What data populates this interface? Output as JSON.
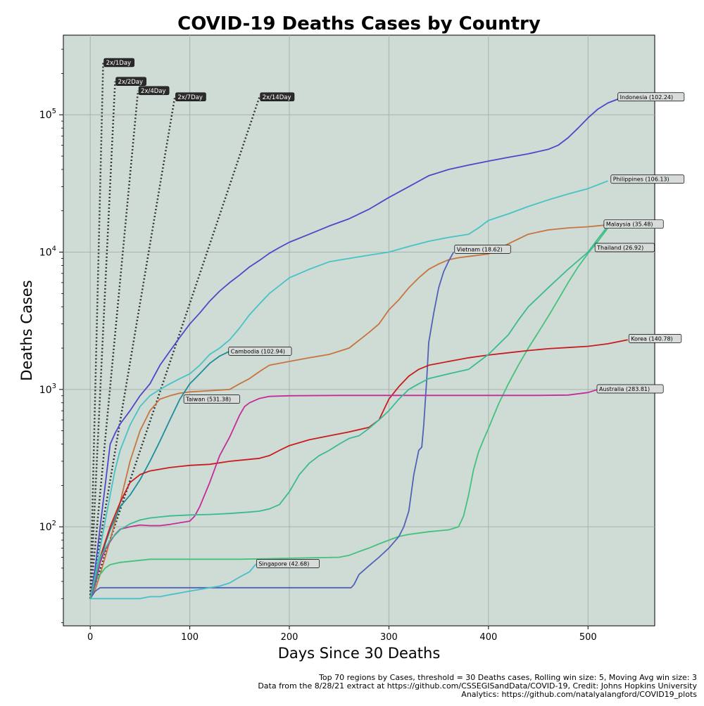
{
  "chart_data": {
    "type": "line",
    "title": "COVID-19  Deaths Cases by Country",
    "xlabel": "Days Since 30 Deaths",
    "ylabel": "Deaths Cases",
    "xlim": [
      -27,
      567
    ],
    "ylim": [
      19,
      380000
    ],
    "yscale": "log",
    "grid": true,
    "x_ticks": [
      0,
      100,
      200,
      300,
      400,
      500
    ],
    "y_ticks": [
      100,
      1000,
      10000,
      100000
    ],
    "y_tick_labels": [
      {
        "base": "10",
        "exp": "2"
      },
      {
        "base": "10",
        "exp": "3"
      },
      {
        "base": "10",
        "exp": "4"
      },
      {
        "base": "10",
        "exp": "5"
      }
    ],
    "background_color": "#cfdbd5",
    "footer": [
      "Top 70 regions by Cases, threshold = 30 Deaths cases, Rolling win size: 5, Moving Avg win size: 3",
      "Data from the 8/28/21 extract at https://github.com/CSSEGISandData/COVID-19, Credit: Johns Hopkins University",
      "Analytics: https://github.com/natalyalangford/COVID19_plots"
    ],
    "doubling_lines": [
      {
        "label": "2x/1Day",
        "end": [
          13,
          240000
        ]
      },
      {
        "label": "2x/2Day",
        "end": [
          25,
          175000
        ]
      },
      {
        "label": "2x/4Day",
        "end": [
          48,
          150000
        ]
      },
      {
        "label": "2x/7Day",
        "end": [
          85,
          135000
        ]
      },
      {
        "label": "2x/14Day",
        "end": [
          170,
          135000
        ]
      }
    ],
    "series": [
      {
        "name": "Indonesia (102.24)",
        "color": "#4f46c9",
        "x": [
          0,
          5,
          10,
          15,
          20,
          25,
          30,
          40,
          50,
          60,
          70,
          80,
          90,
          100,
          110,
          120,
          130,
          140,
          150,
          160,
          170,
          180,
          190,
          200,
          220,
          240,
          260,
          280,
          300,
          320,
          340,
          360,
          380,
          400,
          420,
          440,
          460,
          470,
          480,
          490,
          500,
          510,
          520,
          530
        ],
        "y": [
          30,
          50,
          100,
          200,
          400,
          480,
          560,
          700,
          900,
          1100,
          1500,
          1900,
          2400,
          3000,
          3600,
          4400,
          5200,
          6000,
          6800,
          7800,
          8700,
          9800,
          10800,
          11800,
          13500,
          15500,
          17500,
          20500,
          25000,
          30000,
          36000,
          40000,
          43000,
          46000,
          49000,
          52000,
          56000,
          60000,
          68000,
          80000,
          95000,
          110000,
          122000,
          130000
        ],
        "label_pos": [
          530,
          135000
        ]
      },
      {
        "name": "Philippines (106.13)",
        "color": "#45c3c6",
        "x": [
          0,
          5,
          10,
          15,
          20,
          25,
          30,
          40,
          50,
          60,
          70,
          80,
          90,
          100,
          110,
          120,
          130,
          140,
          150,
          160,
          170,
          180,
          190,
          200,
          220,
          240,
          260,
          280,
          300,
          320,
          340,
          360,
          380,
          390,
          400,
          420,
          440,
          460,
          480,
          500,
          520
        ],
        "y": [
          30,
          45,
          70,
          110,
          170,
          260,
          360,
          550,
          750,
          900,
          1000,
          1100,
          1200,
          1300,
          1500,
          1800,
          2000,
          2300,
          2800,
          3500,
          4200,
          5000,
          5700,
          6500,
          7500,
          8500,
          9000,
          9500,
          10000,
          11000,
          12000,
          12800,
          13500,
          15000,
          17000,
          19000,
          21500,
          24000,
          26500,
          29000,
          33000
        ],
        "label_pos": [
          523,
          34000
        ]
      },
      {
        "name": "Malaysia (35.48)",
        "color": "#c8743e",
        "x": [
          0,
          5,
          10,
          15,
          20,
          30,
          40,
          50,
          60,
          70,
          80,
          90,
          100,
          120,
          140,
          150,
          160,
          170,
          180,
          200,
          220,
          240,
          260,
          280,
          290,
          300,
          310,
          320,
          330,
          340,
          350,
          360,
          370,
          380,
          400,
          420,
          440,
          460,
          480,
          500,
          520
        ],
        "y": [
          30,
          35,
          45,
          60,
          80,
          150,
          300,
          500,
          700,
          850,
          900,
          940,
          960,
          980,
          1000,
          1100,
          1200,
          1350,
          1500,
          1600,
          1700,
          1800,
          2000,
          2600,
          3000,
          3800,
          4500,
          5500,
          6500,
          7500,
          8200,
          8800,
          9100,
          9300,
          9700,
          11500,
          13500,
          14500,
          15000,
          15300,
          15800
        ],
        "label_pos": [
          516,
          16000
        ]
      },
      {
        "name": "Thailand (26.92)",
        "color": "#43c27d",
        "x": [
          0,
          5,
          10,
          15,
          20,
          30,
          40,
          50,
          60,
          100,
          150,
          200,
          250,
          260,
          270,
          280,
          290,
          300,
          310,
          320,
          340,
          360,
          370,
          375,
          380,
          385,
          390,
          395,
          400,
          410,
          420,
          430,
          440,
          450,
          460,
          470,
          480,
          490,
          500,
          510,
          520
        ],
        "y": [
          30,
          40,
          45,
          50,
          53,
          55,
          56,
          57,
          58,
          58,
          58,
          59,
          60,
          62,
          66,
          70,
          75,
          80,
          85,
          88,
          92,
          95,
          100,
          120,
          170,
          260,
          350,
          430,
          520,
          780,
          1100,
          1500,
          2000,
          2600,
          3400,
          4500,
          6000,
          7800,
          9800,
          12000,
          15000
        ],
        "label_pos": [
          507,
          10800
        ]
      },
      {
        "name": "Vietnam (18.62)",
        "color": "#5162b6",
        "x": [
          0,
          5,
          10,
          50,
          100,
          150,
          200,
          250,
          262,
          265,
          270,
          280,
          290,
          300,
          310,
          315,
          320,
          325,
          330,
          333,
          335,
          338,
          340,
          345,
          350,
          355,
          360,
          365
        ],
        "y": [
          30,
          34,
          36,
          36,
          36,
          36,
          36,
          36,
          36,
          38,
          45,
          52,
          60,
          70,
          85,
          100,
          130,
          240,
          360,
          380,
          550,
          1200,
          2200,
          3600,
          5500,
          7200,
          8600,
          10000
        ],
        "label_pos": [
          366,
          10500
        ]
      },
      {
        "name": "Cambodia (102.94)",
        "color": "#1a8e9c",
        "x": [
          0,
          5,
          10,
          15,
          20,
          25,
          30,
          40,
          50,
          60,
          70,
          80,
          90,
          100,
          110,
          120,
          130,
          140
        ],
        "y": [
          30,
          38,
          55,
          75,
          95,
          115,
          140,
          170,
          220,
          300,
          420,
          600,
          850,
          1100,
          1300,
          1550,
          1750,
          1900
        ],
        "label_pos": [
          139,
          1900
        ]
      },
      {
        "name": "Korea (140.78)",
        "color": "#c81d1d",
        "x": [
          0,
          10,
          20,
          30,
          40,
          50,
          60,
          80,
          100,
          120,
          140,
          160,
          170,
          180,
          190,
          200,
          220,
          240,
          260,
          280,
          290,
          300,
          310,
          320,
          330,
          340,
          360,
          380,
          400,
          420,
          440,
          460,
          480,
          500,
          520,
          540
        ],
        "y": [
          30,
          60,
          100,
          150,
          210,
          240,
          255,
          270,
          280,
          285,
          300,
          310,
          315,
          330,
          360,
          390,
          430,
          460,
          490,
          530,
          600,
          850,
          1050,
          1250,
          1400,
          1500,
          1600,
          1700,
          1780,
          1850,
          1920,
          1980,
          2020,
          2060,
          2150,
          2300
        ],
        "label_pos": [
          541,
          2350
        ]
      },
      {
        "name": "Taiwan (531.38)",
        "color": "#c42d99",
        "x": [
          0,
          5,
          10,
          15,
          20,
          25,
          30,
          40,
          50,
          60,
          70,
          80,
          90,
          100,
          105,
          110,
          120,
          130,
          140,
          150,
          155,
          160,
          170,
          180,
          200,
          250,
          300,
          350,
          400,
          450,
          480,
          500,
          510
        ],
        "y": [
          30,
          40,
          55,
          68,
          78,
          88,
          96,
          100,
          103,
          102,
          102,
          104,
          107,
          110,
          120,
          140,
          210,
          330,
          450,
          650,
          750,
          800,
          860,
          890,
          900,
          905,
          905,
          905,
          905,
          905,
          910,
          950,
          1000
        ],
        "label_pos": [
          94,
          850
        ]
      },
      {
        "name": "Australia (283.81)",
        "color": "#c42d99",
        "x": [
          510,
          520
        ],
        "y": [
          1000,
          1020
        ],
        "label_pos": [
          509,
          1010
        ]
      },
      {
        "name": "Singapore (42.68)",
        "color": "#48bfc9",
        "x": [
          0,
          20,
          40,
          50,
          60,
          70,
          80,
          90,
          100,
          110,
          120,
          130,
          140,
          150,
          160,
          165,
          170
        ],
        "y": [
          30,
          30,
          30,
          30,
          31,
          31,
          32,
          33,
          34,
          35,
          36,
          37,
          39,
          43,
          47,
          52,
          56
        ],
        "label_pos": [
          167,
          54
        ]
      },
      {
        "name": "",
        "color": "#3aba94",
        "x": [
          0,
          10,
          20,
          30,
          40,
          50,
          60,
          70,
          80,
          100,
          120,
          140,
          160,
          170,
          180,
          190,
          200,
          210,
          220,
          230,
          240,
          250,
          260,
          270,
          280,
          290,
          300,
          310,
          320,
          330,
          340,
          360,
          380,
          400,
          420,
          430,
          440,
          460,
          480,
          500,
          510,
          520
        ],
        "y": [
          30,
          60,
          80,
          95,
          105,
          112,
          116,
          118,
          120,
          122,
          123,
          125,
          128,
          130,
          135,
          145,
          180,
          240,
          290,
          330,
          360,
          400,
          440,
          460,
          520,
          600,
          700,
          850,
          1000,
          1100,
          1200,
          1300,
          1400,
          1800,
          2500,
          3200,
          4000,
          5500,
          7500,
          10000,
          12500,
          15500
        ],
        "label_pos": null
      }
    ]
  }
}
